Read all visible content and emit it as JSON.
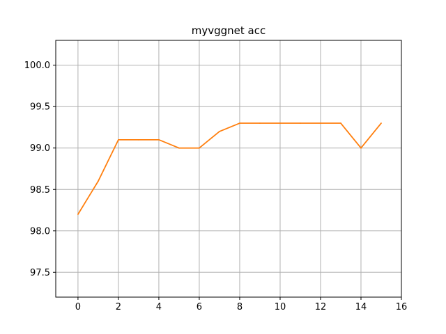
{
  "chart_data": {
    "type": "line",
    "title": "myvggnet acc",
    "xlabel": "",
    "ylabel": "",
    "xlim": [
      -1.1,
      16.0
    ],
    "ylim": [
      97.2,
      100.3
    ],
    "xticks": [
      0,
      2,
      4,
      6,
      8,
      10,
      12,
      14,
      16
    ],
    "yticks": [
      97.5,
      98.0,
      98.5,
      99.0,
      99.5,
      100.0
    ],
    "ytick_labels": [
      "97.5",
      "98.0",
      "98.5",
      "99.0",
      "99.5",
      "100.0"
    ],
    "grid": true,
    "series": [
      {
        "color": "#ff7f0e",
        "x": [
          0,
          1,
          2,
          3,
          4,
          5,
          6,
          7,
          8,
          9,
          10,
          11,
          12,
          13,
          14,
          15
        ],
        "values": [
          98.2,
          98.6,
          99.1,
          99.1,
          99.1,
          99.0,
          99.0,
          99.2,
          99.3,
          99.3,
          99.3,
          99.3,
          99.3,
          99.3,
          99.0,
          99.3
        ]
      }
    ]
  }
}
